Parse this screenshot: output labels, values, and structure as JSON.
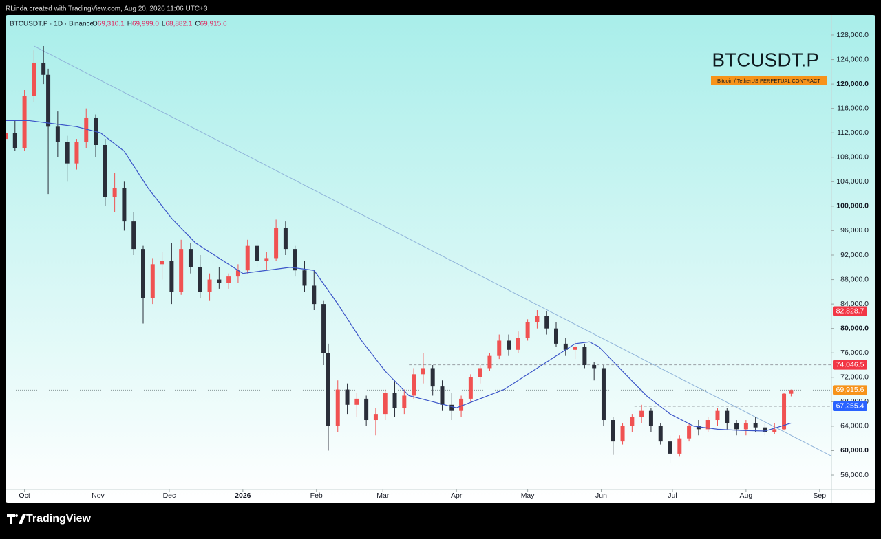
{
  "header": {
    "credit": "RLinda created with TradingView.com, Aug 20, 2026 11:06 UTC+3"
  },
  "footer": {
    "brand": "TradingView"
  },
  "chart_data": {
    "type": "candlestick",
    "symbol": "BTCUSDT.P",
    "subtitle": "Bitcoin / TetherUS PERPETUAL CONTRACT",
    "legend": {
      "title": "BTCUSDT.P · 1D · Binance",
      "ohlc": [
        {
          "key": "O",
          "label": "69,310.1"
        },
        {
          "key": "H",
          "label": "69,999.0"
        },
        {
          "key": "L",
          "label": "68,882.1"
        },
        {
          "key": "C",
          "label": "69,915.6"
        }
      ]
    },
    "up_color": "#f05252",
    "down_color": "#2a2e39",
    "ma_color": "#3b55c8",
    "xlim": [
      0,
      348
    ],
    "xticks": [
      {
        "value": 8,
        "label": "Oct"
      },
      {
        "value": 39,
        "label": "Nov"
      },
      {
        "value": 69,
        "label": "Dec"
      },
      {
        "value": 100,
        "label": "2026"
      },
      {
        "value": 131,
        "label": "Feb"
      },
      {
        "value": 159,
        "label": "Mar"
      },
      {
        "value": 190,
        "label": "Apr"
      },
      {
        "value": 220,
        "label": "May"
      },
      {
        "value": 251,
        "label": "Jun"
      },
      {
        "value": 281,
        "label": "Jul"
      },
      {
        "value": 312,
        "label": "Aug"
      },
      {
        "value": 343,
        "label": "Sep"
      }
    ],
    "ylim": [
      53640,
      131260
    ],
    "yticks": [
      {
        "value": 56000,
        "label": "56,000.0"
      },
      {
        "value": 60000,
        "label": "60,000.0"
      },
      {
        "value": 64000,
        "label": "64,000.0"
      },
      {
        "value": 68000,
        "label": "68,000.0"
      },
      {
        "value": 72000,
        "label": "72,000.0"
      },
      {
        "value": 76000,
        "label": "76,000.0"
      },
      {
        "value": 80000,
        "label": "80,000.0"
      },
      {
        "value": 84000,
        "label": "84,000.0"
      },
      {
        "value": 88000,
        "label": "88,000.0"
      },
      {
        "value": 92000,
        "label": "92,000.0"
      },
      {
        "value": 96000,
        "label": "96,000.0"
      },
      {
        "value": 100000,
        "label": "100,000.0"
      },
      {
        "value": 104000,
        "label": "104,000.0"
      },
      {
        "value": 108000,
        "label": "108,000.0"
      },
      {
        "value": 112000,
        "label": "112,000.0"
      },
      {
        "value": 116000,
        "label": "116,000.0"
      },
      {
        "value": 120000,
        "label": "120,000.0"
      },
      {
        "value": 124000,
        "label": "124,000.0"
      },
      {
        "value": 128000,
        "label": "128,000.0"
      }
    ],
    "candles": {
      "x": [
        0,
        4,
        8,
        12,
        16,
        18,
        22,
        26,
        30,
        34,
        38,
        42,
        46,
        50,
        54,
        58,
        62,
        66,
        70,
        74,
        78,
        82,
        86,
        90,
        94,
        98,
        102,
        106,
        110,
        114,
        118,
        122,
        126,
        130,
        134,
        136,
        140,
        144,
        148,
        152,
        156,
        160,
        164,
        168,
        172,
        176,
        180,
        184,
        188,
        192,
        196,
        200,
        204,
        208,
        212,
        216,
        220,
        224,
        228,
        232,
        236,
        240,
        244,
        248,
        252,
        256,
        260,
        264,
        268,
        272,
        276,
        280,
        284,
        288,
        292,
        296,
        300,
        304,
        308,
        312,
        316,
        320,
        324,
        328,
        331
      ],
      "open": [
        111000,
        112000,
        109500,
        118000,
        123500,
        121500,
        113000,
        110500,
        107000,
        110500,
        114500,
        110000,
        101500,
        103000,
        97500,
        93000,
        85000,
        90500,
        91000,
        86000,
        93000,
        90000,
        86000,
        88000,
        87500,
        88500,
        89500,
        93500,
        91000,
        91500,
        96500,
        93000,
        89500,
        87000,
        84000,
        76000,
        64000,
        70000,
        67500,
        68500,
        65000,
        66000,
        69500,
        67000,
        69000,
        72500,
        73500,
        70500,
        67500,
        66500,
        68500,
        72000,
        73500,
        75500,
        78000,
        76500,
        78500,
        81000,
        82000,
        80000,
        77500,
        76500,
        77000,
        74000,
        73500,
        65000,
        61500,
        64000,
        65500,
        66500,
        64000,
        61500,
        59500,
        62000,
        64000,
        63500,
        65000,
        66500,
        64500,
        63500,
        64500,
        63800,
        63000,
        63500,
        69310.1
      ],
      "high": [
        113000,
        114000,
        119000,
        125500,
        126200,
        122500,
        115500,
        111500,
        111000,
        116000,
        115000,
        111000,
        105500,
        104000,
        99000,
        93500,
        91500,
        92500,
        94000,
        94500,
        94000,
        92000,
        89000,
        90000,
        89000,
        90500,
        94500,
        94500,
        92500,
        97800,
        97500,
        93500,
        91000,
        89500,
        84500,
        77500,
        71500,
        71000,
        69500,
        69000,
        67000,
        70000,
        71500,
        70000,
        73500,
        76000,
        74000,
        71500,
        69500,
        69000,
        72500,
        74000,
        76000,
        79000,
        79000,
        79500,
        81500,
        83000,
        82800,
        81000,
        78500,
        78000,
        77500,
        74500,
        74000,
        65500,
        64500,
        66000,
        67500,
        67000,
        64500,
        62500,
        62500,
        64500,
        65000,
        65500,
        67000,
        67000,
        65000,
        65000,
        65500,
        64500,
        64500,
        69500,
        69999
      ],
      "low": [
        109000,
        109000,
        109000,
        117000,
        120000,
        102000,
        108000,
        104000,
        106000,
        109500,
        108000,
        100000,
        99000,
        96000,
        92000,
        80800,
        84000,
        88000,
        84000,
        85500,
        89000,
        85000,
        84500,
        86500,
        86500,
        87500,
        89000,
        90000,
        89500,
        91000,
        92000,
        88500,
        86000,
        83000,
        74000,
        60000,
        63000,
        66000,
        65500,
        64000,
        62500,
        65000,
        65500,
        66000,
        68500,
        71000,
        69000,
        66500,
        65000,
        65500,
        68000,
        71000,
        73000,
        75000,
        75500,
        76000,
        78000,
        80000,
        79000,
        77000,
        75500,
        75000,
        73500,
        71500,
        64000,
        59300,
        61000,
        63000,
        64500,
        63000,
        61000,
        58000,
        59000,
        61500,
        62500,
        63000,
        64000,
        63500,
        62500,
        62500,
        63000,
        62500,
        62700,
        63300,
        68882.1
      ],
      "close": [
        112000,
        109500,
        118000,
        123500,
        121500,
        113000,
        110500,
        107000,
        110500,
        114500,
        110000,
        101500,
        103000,
        97500,
        93000,
        85000,
        90500,
        91000,
        86000,
        93000,
        90000,
        86000,
        88000,
        87500,
        88500,
        89500,
        93500,
        91000,
        91500,
        96500,
        93000,
        89500,
        87000,
        84000,
        76000,
        64000,
        70000,
        67500,
        68500,
        65000,
        66000,
        69500,
        67000,
        69000,
        72500,
        73500,
        70500,
        67500,
        66500,
        68500,
        72000,
        73500,
        75500,
        78000,
        76500,
        78500,
        81000,
        82000,
        80000,
        77500,
        76500,
        77000,
        74000,
        73500,
        65000,
        61500,
        64000,
        65500,
        66500,
        64000,
        61500,
        59500,
        62000,
        64000,
        63500,
        65000,
        66500,
        64500,
        63500,
        64500,
        63800,
        63000,
        63500,
        69310.1,
        69915.6
      ]
    },
    "ma": {
      "x": [
        0,
        10,
        20,
        30,
        40,
        50,
        60,
        70,
        80,
        90,
        100,
        110,
        120,
        130,
        140,
        150,
        160,
        170,
        180,
        190,
        200,
        210,
        220,
        230,
        240,
        246,
        250,
        260,
        270,
        280,
        290,
        300,
        310,
        320,
        331
      ],
      "values": [
        114000,
        114000,
        113500,
        113000,
        112000,
        109000,
        103000,
        98000,
        94000,
        91500,
        89000,
        89500,
        90000,
        89500,
        84000,
        78000,
        73000,
        69000,
        68000,
        67000,
        68500,
        70000,
        72500,
        75000,
        77500,
        77800,
        77000,
        73000,
        69000,
        66000,
        64000,
        63500,
        63300,
        63200,
        64500
      ]
    },
    "trendline": {
      "x": [
        12,
        348
      ],
      "values": [
        126200,
        59100
      ]
    },
    "levels": [
      {
        "value": 82828.7,
        "label": "82,828.7",
        "color": "#f23645",
        "x": 226
      },
      {
        "value": 74046.5,
        "label": "74,046.5",
        "color": "#f23645",
        "x": 170
      },
      {
        "value": 69915.6,
        "label": "69,915.6",
        "color": "#f7931a",
        "x": 0
      },
      {
        "value": 67255.4,
        "label": "67,255.4",
        "color": "#2962ff",
        "x": 265
      }
    ]
  }
}
